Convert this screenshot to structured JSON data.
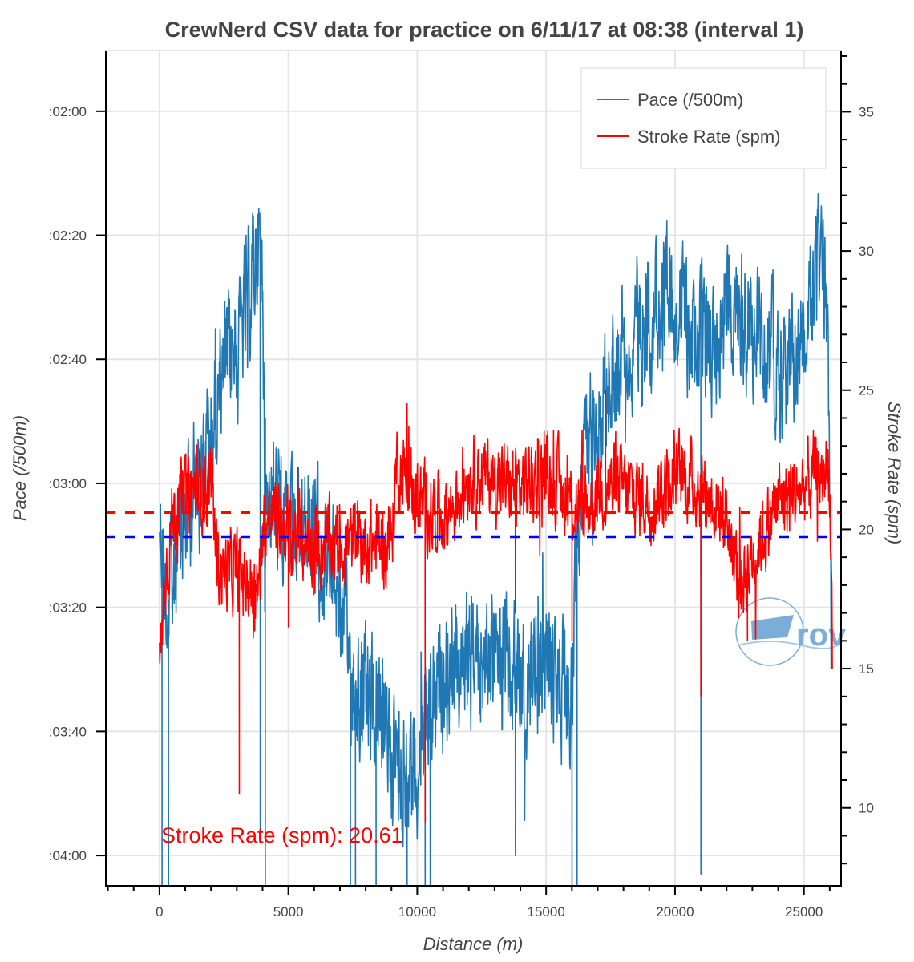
{
  "chart_data": {
    "type": "line",
    "title": "CrewNerd CSV data for practice on 6/11/17 at 08:38 (interval 1)",
    "xlabel": "Distance (m)",
    "ylabel": "Pace (/500m)",
    "ylabel_right": "Stroke Rate (spm)",
    "xlim": [
      -2080,
      26440
    ],
    "ylim_left_seconds": [
      244.9,
      110.2
    ],
    "ylim_left_inverted": true,
    "ylim_right": [
      7.2,
      37.2
    ],
    "grid": true,
    "legend_position": "top-right",
    "x_ticks": [
      0,
      5000,
      10000,
      15000,
      20000,
      25000
    ],
    "x_tick_labels": [
      "0",
      "5000",
      "10000",
      "15000",
      "20000",
      "25000"
    ],
    "x_minor_step": 1000,
    "y_left_ticks_seconds": [
      120,
      140,
      160,
      180,
      200,
      220,
      240
    ],
    "y_left_tick_labels": [
      ":02:00",
      ":02:20",
      ":02:40",
      ":03:00",
      ":03:20",
      ":03:40",
      ":04:00"
    ],
    "y_right_ticks": [
      10,
      15,
      20,
      25,
      30,
      35
    ],
    "y_right_tick_labels": [
      "10",
      "15",
      "20",
      "25",
      "30",
      "35"
    ],
    "y_right_minor_step": 1,
    "series": [
      {
        "name": "Pace (/500m)",
        "axis": "left",
        "unit": "seconds per 500m",
        "color": "#1f77b4",
        "profile_x": [
          0,
          300,
          1000,
          2000,
          2500,
          3000,
          3500,
          3800,
          4000,
          4100,
          4500,
          5000,
          6000,
          7000,
          7500,
          8000,
          9000,
          9500,
          10000,
          10500,
          11000,
          12000,
          13000,
          14000,
          15000,
          15500,
          16000,
          16200,
          16500,
          17000,
          18000,
          19000,
          20000,
          20500,
          21000,
          21500,
          22000,
          23000,
          24000,
          24500,
          25000,
          25500,
          25900,
          26100
        ],
        "profile_y": [
          185,
          200,
          185,
          172,
          162,
          158,
          150,
          140,
          148,
          180,
          182,
          190,
          188,
          198,
          212,
          215,
          222,
          228,
          225,
          218,
          212,
          208,
          208,
          212,
          208,
          212,
          215,
          190,
          175,
          168,
          158,
          152,
          150,
          155,
          158,
          158,
          150,
          155,
          160,
          162,
          158,
          145,
          148,
          210
        ],
        "noise_amplitude_seconds": 9,
        "spikes": [
          {
            "x": 100,
            "y": 245
          },
          {
            "x": 350,
            "y": 245
          },
          {
            "x": 3900,
            "y": 238
          },
          {
            "x": 4100,
            "y": 245
          },
          {
            "x": 7400,
            "y": 245
          },
          {
            "x": 7600,
            "y": 245
          },
          {
            "x": 8400,
            "y": 245
          },
          {
            "x": 9600,
            "y": 245
          },
          {
            "x": 10300,
            "y": 245
          },
          {
            "x": 10500,
            "y": 245
          },
          {
            "x": 13800,
            "y": 240
          },
          {
            "x": 16000,
            "y": 245
          },
          {
            "x": 16200,
            "y": 245
          },
          {
            "x": 21000,
            "y": 243
          }
        ]
      },
      {
        "name": "Stroke Rate (spm)",
        "axis": "right",
        "unit": "strokes per minute",
        "color": "#ff0000",
        "profile_x": [
          0,
          200,
          500,
          1000,
          1500,
          2000,
          2300,
          2500,
          3000,
          3500,
          3800,
          4000,
          4500,
          5000,
          6000,
          7000,
          8000,
          8500,
          9000,
          9200,
          10000,
          11000,
          11500,
          12000,
          13000,
          14000,
          15000,
          16000,
          16500,
          17000,
          18000,
          19000,
          20000,
          21000,
          21500,
          22000,
          22500,
          23000,
          24000,
          25000,
          25500,
          26000,
          26100
        ],
        "profile_y": [
          15,
          18,
          20.5,
          21,
          21.5,
          21.5,
          18.5,
          18.5,
          18.5,
          18,
          17.5,
          20,
          20.5,
          20,
          19.5,
          19.5,
          19.5,
          19.5,
          19.5,
          22.5,
          21,
          20.5,
          21,
          22,
          21.8,
          21.5,
          22,
          21,
          20.5,
          21.5,
          21.5,
          21,
          22,
          21.5,
          21,
          20.5,
          18,
          19,
          21,
          21.5,
          22,
          22,
          16
        ],
        "noise_amplitude_spm": 1.2,
        "spikes": [
          {
            "x": 3100,
            "y": 10.5
          },
          {
            "x": 4100,
            "y": 24
          },
          {
            "x": 5000,
            "y": 16.5
          },
          {
            "x": 10300,
            "y": 9.5
          },
          {
            "x": 13800,
            "y": 17
          },
          {
            "x": 16000,
            "y": 16
          },
          {
            "x": 17300,
            "y": 25
          },
          {
            "x": 21000,
            "y": 14
          },
          {
            "x": 22800,
            "y": 16
          },
          {
            "x": 26100,
            "y": 15
          }
        ]
      }
    ],
    "reference_lines": [
      {
        "name": "Stroke Rate mean",
        "axis": "right",
        "value": 20.61,
        "color": "#ff0000",
        "style": "dashed"
      },
      {
        "name": "Pace mean",
        "axis": "left",
        "value_seconds": 188.6,
        "color": "#0000ff",
        "style": "dashed"
      }
    ],
    "annotations": [
      {
        "text": "Stroke Rate (spm):  20.61",
        "color": "#ff0000",
        "position": "bottom-left"
      }
    ],
    "legend": [
      {
        "label": "Pace (/500m)",
        "color": "#1f77b4"
      },
      {
        "label": "Stroke Rate (spm)",
        "color": "#ff0000"
      }
    ],
    "watermark": {
      "text": "rov",
      "color": "#74a9d8"
    }
  }
}
